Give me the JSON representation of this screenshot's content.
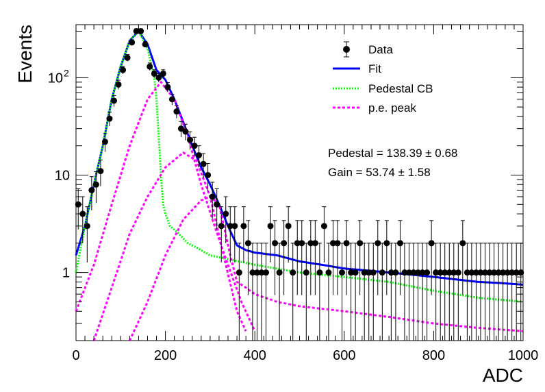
{
  "chart_data": {
    "type": "scatter",
    "xlabel": "ADC",
    "ylabel": "Events",
    "xlim": [
      0,
      1000
    ],
    "ylim": [
      0.2,
      350
    ],
    "yscale": "log",
    "grid": false,
    "legend_position": "top-right",
    "x_ticks": [
      "0",
      "200",
      "400",
      "600",
      "800",
      "1000"
    ],
    "y_ticks": [
      {
        "value": 1,
        "label": "1"
      },
      {
        "value": 10,
        "label": "10"
      },
      {
        "value": 100,
        "label": "10",
        "exponent": "2"
      }
    ],
    "legend": [
      {
        "label": "Data",
        "style": "marker"
      },
      {
        "label": "Fit",
        "style": "solid",
        "color": "#0000ff"
      },
      {
        "label": "Pedestal CB",
        "style": "dotted",
        "color": "#00ff00"
      },
      {
        "label": "p.e. peak",
        "style": "dashed",
        "color": "#ff00ff"
      }
    ],
    "annotations": {
      "pedestal": "Pedestal = 138.39 ± 0.68",
      "gain": "Gain = 53.74 ± 1.58"
    },
    "series": [
      {
        "name": "Data",
        "x": [
          5,
          15,
          25,
          35,
          45,
          55,
          65,
          75,
          85,
          95,
          105,
          115,
          125,
          135,
          145,
          155,
          165,
          175,
          185,
          195,
          205,
          215,
          225,
          235,
          245,
          255,
          265,
          275,
          285,
          295,
          305,
          315,
          325,
          335,
          345,
          355,
          365,
          375,
          385,
          395,
          405,
          415,
          425,
          435,
          445,
          455,
          465,
          475,
          485,
          495,
          505,
          515,
          525,
          535,
          545,
          555,
          565,
          575,
          585,
          595,
          605,
          615,
          625,
          635,
          645,
          655,
          665,
          675,
          685,
          695,
          705,
          715,
          725,
          735,
          745,
          755,
          765,
          775,
          785,
          795,
          805,
          815,
          825,
          835,
          845,
          855,
          865,
          875,
          885,
          895,
          905,
          915,
          925,
          935,
          945,
          955,
          965,
          975,
          985,
          995
        ],
        "y": [
          5,
          4,
          3,
          7,
          8,
          11,
          22,
          38,
          58,
          85,
          120,
          160,
          230,
          300,
          300,
          220,
          130,
          110,
          100,
          110,
          80,
          60,
          45,
          30,
          28,
          23,
          20,
          16,
          13,
          10,
          6,
          5,
          3,
          4,
          3,
          3,
          1,
          3,
          2,
          1,
          1,
          1,
          1,
          3,
          2,
          1,
          2,
          3,
          1,
          2,
          2,
          1,
          2,
          2,
          1,
          3,
          1,
          2,
          2,
          1,
          2,
          1,
          1,
          2,
          1,
          1,
          1,
          2,
          1,
          2,
          1,
          1,
          2,
          1,
          1,
          1,
          1,
          1,
          1,
          2,
          1,
          1,
          1,
          1,
          1,
          1,
          2,
          1,
          1,
          1,
          1,
          1,
          1,
          1,
          1,
          1,
          1,
          1,
          1,
          1
        ]
      },
      {
        "name": "Fit",
        "x": [
          0,
          20,
          40,
          60,
          80,
          100,
          120,
          140,
          160,
          180,
          200,
          220,
          240,
          260,
          280,
          300,
          320,
          340,
          360,
          380,
          400,
          450,
          500,
          550,
          600,
          650,
          700,
          750,
          800,
          850,
          900,
          950,
          1000
        ],
        "y": [
          1.5,
          3,
          8,
          20,
          60,
          130,
          240,
          300,
          220,
          120,
          95,
          60,
          35,
          20,
          12,
          8,
          5,
          3,
          1.9,
          1.7,
          1.6,
          1.5,
          1.3,
          1.2,
          1.1,
          1.05,
          1.0,
          0.95,
          0.9,
          0.85,
          0.8,
          0.78,
          0.75
        ]
      },
      {
        "name": "Pedestal CB",
        "x": [
          0,
          20,
          40,
          60,
          80,
          100,
          120,
          140,
          160,
          175,
          180,
          185,
          190,
          195,
          200,
          210,
          230,
          250,
          270,
          300,
          400,
          500,
          600,
          700,
          800,
          900,
          1000
        ],
        "y": [
          1.0,
          3,
          8,
          20,
          60,
          130,
          240,
          300,
          200,
          100,
          60,
          25,
          10,
          5,
          4,
          3,
          2.5,
          2.0,
          1.8,
          1.5,
          1.2,
          1.0,
          0.9,
          0.8,
          0.65,
          0.55,
          0.5
        ]
      },
      {
        "name": "p.e. peak (1)",
        "x": [
          0,
          40,
          80,
          120,
          160,
          190,
          220,
          250,
          280,
          310,
          340,
          370,
          400
        ],
        "y": [
          0.4,
          1.2,
          5,
          20,
          60,
          90,
          60,
          25,
          8,
          3,
          1.2,
          0.5,
          0.25
        ]
      },
      {
        "name": "p.e. peak (2)",
        "x": [
          40,
          80,
          120,
          160,
          200,
          240,
          270,
          300,
          330,
          360,
          380
        ],
        "y": [
          0.2,
          0.7,
          2.5,
          6,
          12,
          17,
          14,
          6,
          1.5,
          0.4,
          0.25
        ]
      },
      {
        "name": "p.e. peak (3)",
        "x": [
          120,
          160,
          200,
          240,
          280,
          300,
          320,
          345,
          360,
          380,
          400,
          450,
          500,
          600,
          700,
          800,
          900,
          1000
        ],
        "y": [
          0.2,
          0.5,
          1.5,
          3.5,
          5.5,
          6,
          5,
          1.5,
          0.8,
          0.7,
          0.6,
          0.5,
          0.45,
          0.4,
          0.35,
          0.3,
          0.27,
          0.25
        ]
      }
    ]
  }
}
